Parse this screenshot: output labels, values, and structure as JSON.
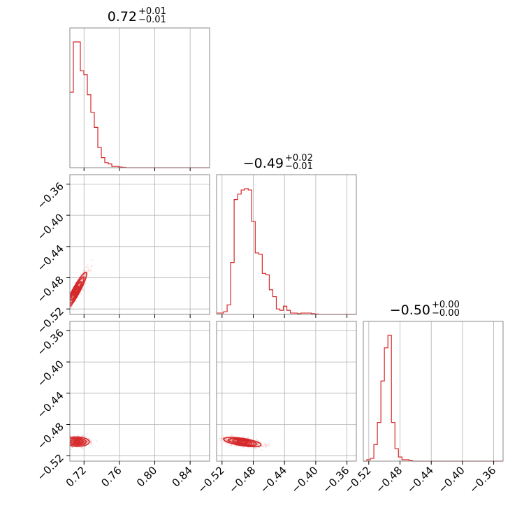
{
  "chart_data": {
    "type": "corner",
    "color": "#d62728",
    "grid": true,
    "titles": [
      {
        "value": "0.72",
        "plus": "+0.01",
        "minus": "−0.01"
      },
      {
        "value": "−0.49",
        "plus": "+0.02",
        "minus": "−0.01"
      },
      {
        "value": "−0.50",
        "plus": "+0.00",
        "minus": "−0.00"
      }
    ],
    "params": [
      {
        "range": [
          0.704,
          0.862
        ],
        "ticks": [
          0.72,
          0.76,
          0.8,
          0.84
        ],
        "tick_labels": [
          "0.72",
          "0.76",
          "0.80",
          "0.84"
        ]
      },
      {
        "range": [
          -0.527,
          -0.348
        ],
        "ticks": [
          -0.52,
          -0.48,
          -0.44,
          -0.4,
          -0.36
        ],
        "tick_labels": [
          "−0.52",
          "−0.48",
          "−0.44",
          "−0.40",
          "−0.36"
        ]
      },
      {
        "range": [
          -0.527,
          -0.348
        ],
        "ticks": [
          -0.52,
          -0.48,
          -0.44,
          -0.4,
          -0.36
        ],
        "tick_labels": [
          "−0.52",
          "−0.48",
          "−0.44",
          "−0.40",
          "−0.36"
        ]
      }
    ],
    "histograms": [
      {
        "param": 0,
        "bin_width": 0.00395,
        "counts": [
          60,
          100,
          100,
          77,
          74,
          58,
          44,
          32,
          16,
          8,
          4,
          3,
          1,
          1,
          0.5,
          0.3,
          0,
          0,
          0,
          0,
          0,
          0,
          0,
          0,
          0,
          0,
          0,
          0,
          0,
          0,
          0,
          0,
          0,
          0,
          0,
          0,
          0,
          0,
          0,
          0
        ]
      },
      {
        "param": 1,
        "bin_start": -0.527,
        "bin_width": 0.0045,
        "counts": [
          1,
          1,
          2,
          7,
          38,
          84,
          88,
          91,
          92,
          91,
          68,
          45,
          44,
          30,
          29,
          18,
          13,
          4,
          3,
          6,
          3,
          1,
          1,
          0.5,
          1,
          1,
          1,
          0.5,
          0.3,
          0,
          0,
          0,
          0,
          0,
          0,
          0,
          0,
          0,
          0,
          0
        ]
      },
      {
        "param": 2,
        "bin_start": -0.527,
        "bin_width": 0.0045,
        "counts": [
          0,
          1,
          2,
          12,
          28,
          58,
          82,
          91,
          28,
          9,
          3,
          1,
          1,
          0.5,
          0,
          0,
          0,
          0,
          0,
          0,
          0,
          0,
          0,
          0,
          0,
          0,
          0,
          0,
          0,
          0,
          0,
          0,
          0,
          0,
          0,
          0,
          0,
          0,
          0,
          0
        ]
      }
    ],
    "joint_distributions": [
      {
        "x_param": 0,
        "y_param": 1,
        "mean": [
          0.711,
          -0.497
        ],
        "std": [
          0.006,
          0.012
        ],
        "correlation": 0.92
      },
      {
        "x_param": 0,
        "y_param": 2,
        "mean": [
          0.712,
          -0.502
        ],
        "std": [
          0.007,
          0.003
        ],
        "correlation": -0.05
      },
      {
        "x_param": 1,
        "y_param": 2,
        "mean": [
          -0.494,
          -0.5025
        ],
        "std": [
          0.012,
          0.003
        ],
        "correlation": -0.6
      }
    ],
    "contour_levels_sigma": [
      0.5,
      1.0,
      1.5,
      2.0
    ]
  }
}
